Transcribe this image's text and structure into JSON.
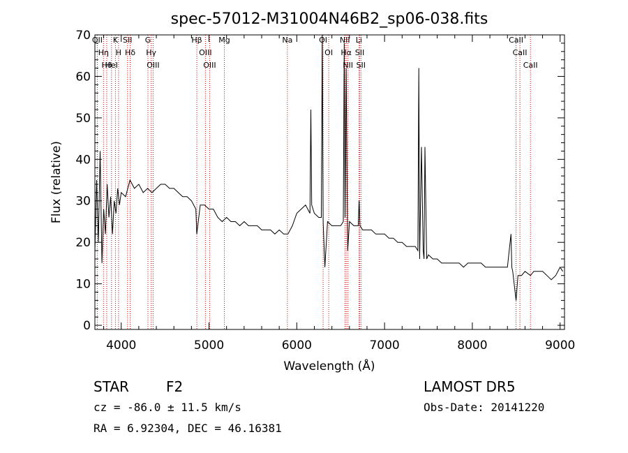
{
  "chart_data": {
    "type": "line",
    "title": "spec-57012-M31004N46B2_sp06-038.fits",
    "xlabel": "Wavelength (Å)",
    "ylabel": "Flux (relative)",
    "xlim": [
      3700,
      9050
    ],
    "ylim": [
      -1,
      70
    ],
    "xticks": [
      4000,
      5000,
      6000,
      7000,
      8000,
      9000
    ],
    "yticks": [
      0,
      10,
      20,
      30,
      40,
      50,
      60,
      70
    ],
    "grid": false,
    "line_color": "#000000",
    "marker_color": "#cc0000",
    "series": [
      {
        "x": [
          3700,
          3720,
          3740,
          3760,
          3780,
          3800,
          3820,
          3840,
          3860,
          3880,
          3900,
          3920,
          3940,
          3960,
          3980,
          4000,
          4050,
          4100,
          4150,
          4200,
          4250,
          4300,
          4350,
          4400,
          4450,
          4500,
          4550,
          4600,
          4650,
          4700,
          4750,
          4800,
          4850,
          4861,
          4900,
          4950,
          5000,
          5050,
          5100,
          5150,
          5200,
          5250,
          5300,
          5350,
          5400,
          5450,
          5500,
          5550,
          5600,
          5650,
          5700,
          5750,
          5800,
          5850,
          5900,
          5950,
          6000,
          6050,
          6100,
          6150,
          6160,
          6170,
          6200,
          6250,
          6280,
          6290,
          6300,
          6320,
          6350,
          6400,
          6450,
          6500,
          6530,
          6540,
          6550,
          6563,
          6580,
          6600,
          6650,
          6700,
          6710,
          6720,
          6750,
          6800,
          6850,
          6900,
          6950,
          7000,
          7050,
          7100,
          7150,
          7200,
          7250,
          7300,
          7350,
          7380,
          7390,
          7400,
          7420,
          7440,
          7450,
          7460,
          7480,
          7500,
          7550,
          7600,
          7650,
          7700,
          7750,
          7800,
          7850,
          7900,
          7950,
          8000,
          8050,
          8100,
          8150,
          8200,
          8250,
          8300,
          8350,
          8400,
          8440,
          8450,
          8460,
          8498,
          8520,
          8542,
          8560,
          8600,
          8662,
          8700,
          8750,
          8800,
          8850,
          8900,
          8950,
          9000,
          9030
        ],
        "y": [
          18,
          35,
          20,
          42,
          15,
          28,
          22,
          34,
          26,
          31,
          22,
          30,
          27,
          33,
          29,
          32,
          31,
          35,
          33,
          34,
          32,
          33,
          32,
          33,
          34,
          34,
          33,
          33,
          32,
          31,
          31,
          30,
          28,
          22,
          29,
          29,
          28,
          28,
          26,
          25,
          26,
          25,
          25,
          24,
          25,
          24,
          24,
          24,
          23,
          23,
          23,
          22,
          23,
          22,
          22,
          24,
          27,
          28,
          29,
          27,
          52,
          29,
          27,
          26,
          26,
          70,
          25,
          14,
          25,
          24,
          24,
          24,
          25,
          68,
          26,
          62,
          18,
          25,
          24,
          24,
          30,
          24,
          23,
          23,
          23,
          22,
          22,
          22,
          21,
          21,
          20,
          20,
          19,
          19,
          19,
          18,
          62,
          16,
          43,
          18,
          16,
          43,
          16,
          17,
          16,
          16,
          15,
          15,
          15,
          15,
          15,
          14,
          15,
          15,
          15,
          15,
          14,
          14,
          14,
          14,
          14,
          14,
          22,
          14,
          13,
          6,
          12,
          12,
          12,
          13,
          12,
          13,
          13,
          13,
          12,
          11,
          12,
          14,
          13
        ]
      }
    ],
    "line_markers": [
      {
        "wl": 3727,
        "label": "OII"
      },
      {
        "wl": 3798,
        "label": "Hη"
      },
      {
        "wl": 3835,
        "label": "Hθ"
      },
      {
        "wl": 3889,
        "label": "HeI"
      },
      {
        "wl": 3934,
        "label": "K"
      },
      {
        "wl": 3969,
        "label": "H"
      },
      {
        "wl": 4072,
        "label": "SII"
      },
      {
        "wl": 4102,
        "label": "Hδ"
      },
      {
        "wl": 4304,
        "label": "G"
      },
      {
        "wl": 4341,
        "label": "Hγ"
      },
      {
        "wl": 4363,
        "label": "OIII"
      },
      {
        "wl": 4861,
        "label": "Hβ"
      },
      {
        "wl": 4959,
        "label": "OIII"
      },
      {
        "wl": 5007,
        "label": "OIII"
      },
      {
        "wl": 5175,
        "label": "Mg"
      },
      {
        "wl": 5893,
        "label": "Na"
      },
      {
        "wl": 6300,
        "label": "OI"
      },
      {
        "wl": 6364,
        "label": "OI"
      },
      {
        "wl": 6548,
        "label": "NII"
      },
      {
        "wl": 6563,
        "label": "Hα"
      },
      {
        "wl": 6583,
        "label": "NII"
      },
      {
        "wl": 6708,
        "label": "Li"
      },
      {
        "wl": 6717,
        "label": "SII"
      },
      {
        "wl": 6731,
        "label": "SII"
      },
      {
        "wl": 8498,
        "label": "CaII"
      },
      {
        "wl": 8542,
        "label": "CaII"
      },
      {
        "wl": 8662,
        "label": "CaII"
      }
    ]
  },
  "info": {
    "class": "STAR",
    "subclass": "F2",
    "cz": "cz = -86.0 ± 11.5 km/s",
    "coords": "RA =   6.92304, DEC =  46.16381",
    "survey": "LAMOST DR5",
    "obs_date": "Obs-Date: 20141220"
  }
}
